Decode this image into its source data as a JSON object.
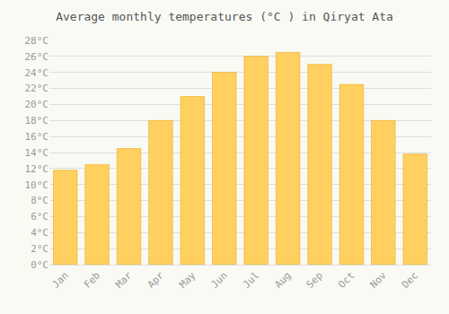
{
  "chart_data": {
    "type": "bar",
    "title": "Average monthly temperatures (°C ) in Qiryat Ata",
    "categories": [
      "Jan",
      "Feb",
      "Mar",
      "Apr",
      "May",
      "Jun",
      "Jul",
      "Aug",
      "Sep",
      "Oct",
      "Nov",
      "Dec"
    ],
    "values": [
      11.8,
      12.5,
      14.5,
      18.0,
      21.0,
      24.0,
      26.0,
      26.5,
      25.0,
      22.5,
      18.0,
      13.8
    ],
    "color": "#FFD060",
    "ylim": [
      0,
      28
    ],
    "yticks": [
      {
        "value": 0,
        "label": "0°C"
      },
      {
        "value": 2,
        "label": "2°C"
      },
      {
        "value": 4,
        "label": "4°C"
      },
      {
        "value": 6,
        "label": "6°C"
      },
      {
        "value": 8,
        "label": "8°C"
      },
      {
        "value": 10,
        "label": "10°C"
      },
      {
        "value": 12,
        "label": "12°C"
      },
      {
        "value": 14,
        "label": "14°C"
      },
      {
        "value": 16,
        "label": "16°C"
      },
      {
        "value": 18,
        "label": "18°C"
      },
      {
        "value": 20,
        "label": "20°C"
      },
      {
        "value": 22,
        "label": "22°C"
      },
      {
        "value": 24,
        "label": "24°C"
      },
      {
        "value": 26,
        "label": "26°C"
      },
      {
        "value": 28,
        "label": "28°C"
      }
    ],
    "grid": true
  }
}
